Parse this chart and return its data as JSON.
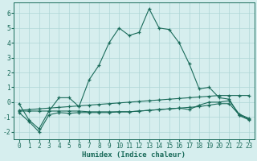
{
  "x": [
    0,
    1,
    2,
    3,
    4,
    5,
    6,
    7,
    8,
    9,
    10,
    11,
    12,
    13,
    14,
    15,
    16,
    17,
    18,
    19,
    20,
    21,
    22,
    23
  ],
  "line_main": [
    -0.1,
    -1.2,
    -1.8,
    -0.6,
    0.3,
    0.3,
    -0.3,
    1.5,
    2.5,
    4.0,
    5.0,
    4.5,
    4.7,
    6.3,
    5.0,
    4.9,
    4.0,
    2.6,
    0.9,
    1.0,
    0.3,
    0.2,
    -0.9,
    -1.2
  ],
  "line_flat1": [
    -0.6,
    -0.6,
    -0.6,
    -0.6,
    -0.6,
    -0.6,
    -0.6,
    -0.65,
    -0.65,
    -0.65,
    -0.65,
    -0.65,
    -0.6,
    -0.55,
    -0.5,
    -0.45,
    -0.4,
    -0.5,
    -0.2,
    0.0,
    0.0,
    0.1,
    -0.8,
    -1.1
  ],
  "line_flat2": [
    -0.7,
    -1.3,
    -2.0,
    -0.85,
    -0.7,
    -0.75,
    -0.7,
    -0.7,
    -0.7,
    -0.7,
    -0.65,
    -0.65,
    -0.6,
    -0.55,
    -0.5,
    -0.45,
    -0.4,
    -0.35,
    -0.3,
    -0.2,
    -0.1,
    -0.1,
    -0.85,
    -1.15
  ],
  "line_trend": [
    -0.55,
    -0.5,
    -0.45,
    -0.4,
    -0.35,
    -0.3,
    -0.25,
    -0.2,
    -0.15,
    -0.1,
    -0.05,
    0.0,
    0.05,
    0.1,
    0.15,
    0.2,
    0.25,
    0.3,
    0.35,
    0.4,
    0.45,
    0.45,
    0.45,
    0.45
  ],
  "color": "#1a6b5a",
  "bg_color": "#d6eeee",
  "grid_color": "#aed6d6",
  "xlim": [
    -0.5,
    23.5
  ],
  "ylim": [
    -2.5,
    6.7
  ],
  "yticks": [
    -2,
    -1,
    0,
    1,
    2,
    3,
    4,
    5,
    6
  ],
  "xticks": [
    0,
    1,
    2,
    3,
    4,
    5,
    6,
    7,
    8,
    9,
    10,
    11,
    12,
    13,
    14,
    15,
    16,
    17,
    18,
    19,
    20,
    21,
    22,
    23
  ],
  "xlabel": "Humidex (Indice chaleur)",
  "linewidth": 0.8,
  "markersize": 3.5,
  "tick_fontsize": 5.5,
  "xlabel_fontsize": 6.5
}
